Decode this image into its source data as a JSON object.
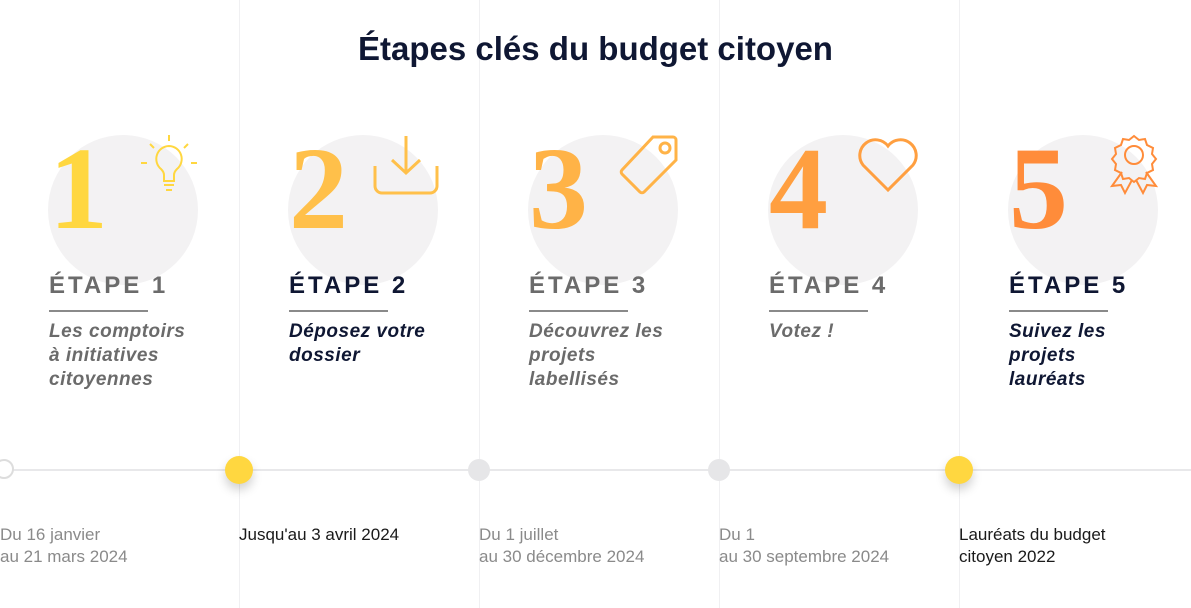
{
  "title": "Étapes clés du budget citoyen",
  "steps": [
    {
      "number": "1",
      "label": "ÉTAPE 1",
      "description": [
        "Les comptoirs",
        "à initiatives",
        "citoyennes"
      ],
      "date": [
        "Du 16 janvier",
        "au 21 mars 2024"
      ]
    },
    {
      "number": "2",
      "label": "ÉTAPE 2",
      "description": [
        "Déposez votre",
        "dossier"
      ],
      "date": [
        "Jusqu'au 3 avril 2024"
      ]
    },
    {
      "number": "3",
      "label": "ÉTAPE 3",
      "description": [
        "Découvrez les",
        "projets",
        "labellisés"
      ],
      "date": [
        "Du 1 juillet",
        "au 30 décembre 2024"
      ]
    },
    {
      "number": "4",
      "label": "ÉTAPE 4",
      "description": [
        "Votez !"
      ],
      "date": [
        "Du 1",
        "au 30 septembre 2024"
      ]
    },
    {
      "number": "5",
      "label": "ÉTAPE 5",
      "description": [
        "Suivez les",
        "projets",
        "lauréats"
      ],
      "date": [
        "Lauréats du budget",
        "citoyen 2022"
      ]
    }
  ]
}
